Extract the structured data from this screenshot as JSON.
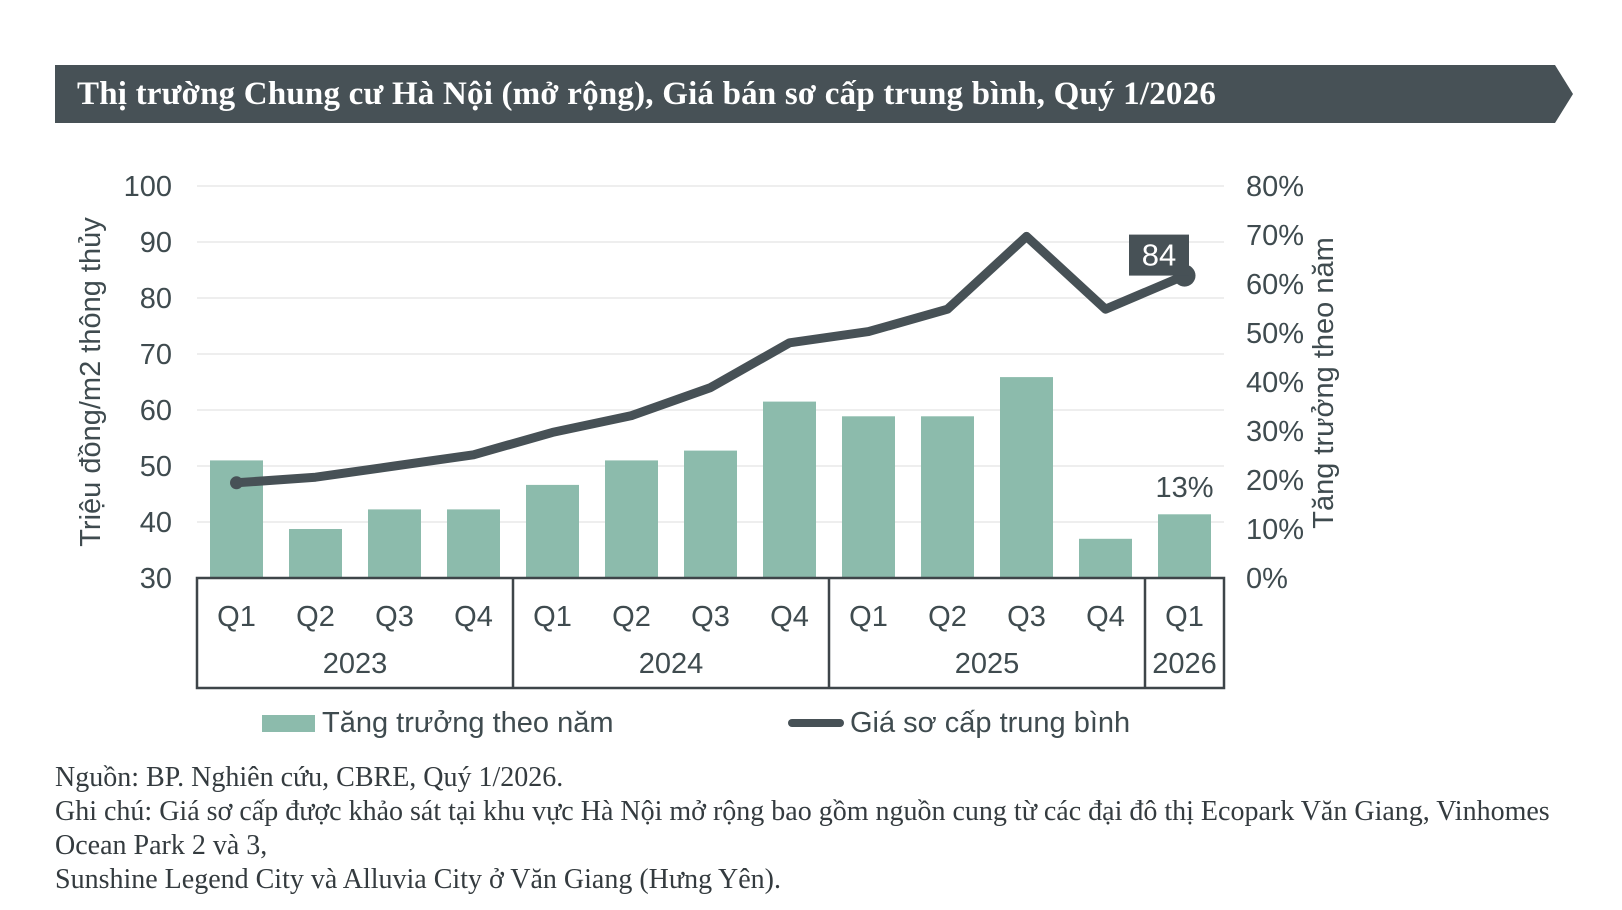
{
  "colors": {
    "accent_green": "#8CBBAC",
    "dark_slate": "#475156",
    "axis_text": "#3F4B4F",
    "grid_line": "#E8E8E8",
    "band_border": "#3E4549",
    "label_box_text": "#FFFFFF"
  },
  "banner": {
    "title": "Thị trường Chung cư Hà Nội (mở rộng), Giá bán sơ cấp trung bình, Quý 1/2026"
  },
  "chart_data": {
    "type": "bar+line",
    "categories": [
      "Q1",
      "Q2",
      "Q3",
      "Q4",
      "Q1",
      "Q2",
      "Q3",
      "Q4",
      "Q1",
      "Q2",
      "Q3",
      "Q4",
      "Q1"
    ],
    "year_groups": [
      {
        "label": "2023",
        "quarters": 4
      },
      {
        "label": "2024",
        "quarters": 4
      },
      {
        "label": "2025",
        "quarters": 4
      },
      {
        "label": "2026",
        "quarters": 1
      }
    ],
    "series": [
      {
        "name": "Tăng trưởng theo năm",
        "type": "bar",
        "axis": "right",
        "values": [
          24,
          10,
          14,
          14,
          19,
          24,
          26,
          36,
          33,
          33,
          41,
          8,
          13
        ]
      },
      {
        "name": "Giá sơ cấp trung bình",
        "type": "line",
        "axis": "left",
        "values": [
          47,
          48,
          50,
          52,
          56,
          59,
          64,
          72,
          74,
          78,
          91,
          78,
          84
        ]
      }
    ],
    "left_axis": {
      "label": "Triệu đồng/m2 thông thủy",
      "min": 30,
      "max": 100,
      "step": 10,
      "suffix": ""
    },
    "right_axis": {
      "label": "Tăng trưởng theo năm",
      "min": 0,
      "max": 80,
      "step": 10,
      "suffix": "%"
    },
    "annotations": {
      "line_end_label": "84",
      "last_bar_label": "13%"
    },
    "grid": "horizontal",
    "legend_position": "bottom"
  },
  "legend": {
    "items": [
      {
        "label": "Tăng trưởng theo năm",
        "swatch": "bar"
      },
      {
        "label": "Giá sơ cấp trung bình",
        "swatch": "line"
      }
    ]
  },
  "footer": {
    "source": "Nguồn: BP. Nghiên cứu, CBRE, Quý 1/2026.",
    "note_line1": "Ghi chú: Giá sơ cấp được khảo sát tại khu vực Hà Nội mở rộng bao gồm nguồn cung từ các đại đô thị Ecopark Văn Giang, Vinhomes Ocean Park 2 và 3,",
    "note_line2": "Sunshine Legend City và Alluvia City ở Văn Giang (Hưng Yên)."
  }
}
